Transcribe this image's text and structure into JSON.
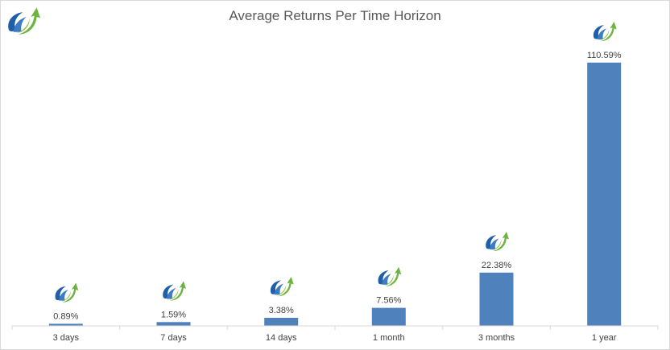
{
  "chart_data": {
    "type": "bar",
    "title": "Average Returns Per Time Horizon",
    "categories": [
      "3 days",
      "7 days",
      "14 days",
      "1 month",
      "3 months",
      "1 year"
    ],
    "values": [
      0.89,
      1.59,
      3.38,
      7.56,
      22.38,
      110.59
    ],
    "data_labels": [
      "0.89%",
      "1.59%",
      "3.38%",
      "7.56%",
      "22.38%",
      "110.59%"
    ],
    "xlabel": "",
    "ylabel": "",
    "ylim": [
      0,
      120
    ],
    "grid": false,
    "legend": "none",
    "y_axis_visible": false
  },
  "colors": {
    "bar": "#4f81bd",
    "text": "#404040",
    "title": "#595959",
    "axis": "#d9d9d9",
    "logo_blue": "#1f5fa8",
    "logo_green": "#6cb33f"
  },
  "icons": {
    "corner_logo": "rising-arrow-logo-icon",
    "bar_marker": "rising-arrow-logo-icon"
  }
}
